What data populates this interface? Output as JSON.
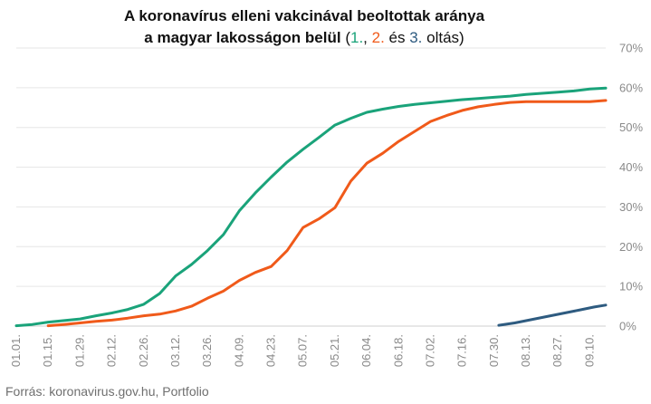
{
  "chart_data": {
    "type": "line",
    "title_line1": "A koronavírus elleni vakcinával beoltottak aránya",
    "title_line2_text": "a magyar lakosságon belül",
    "title_line2_open": " (",
    "legend_first": "1.",
    "legend_sep1": ", ",
    "legend_second": "2.",
    "legend_and": " és ",
    "legend_third": "3.",
    "legend_suffix": " oltás)",
    "xlabel": "",
    "ylabel": "",
    "x_ticks": [
      "01.01.",
      "01.15.",
      "01.29.",
      "02.12.",
      "02.26.",
      "03.12.",
      "03.26.",
      "04.09.",
      "04.23.",
      "05.07.",
      "05.21.",
      "06.04.",
      "06.18.",
      "07.02.",
      "07.16.",
      "07.30.",
      "08.13.",
      "08.27.",
      "09.10."
    ],
    "y_ticks": [
      "0%",
      "10%",
      "20%",
      "30%",
      "40%",
      "50%",
      "60%",
      "70%"
    ],
    "ylim": [
      0,
      70
    ],
    "x_start": "2021-01-01",
    "x_end": "2021-09-17",
    "grid": true,
    "legend": "in title",
    "series": [
      {
        "color": "#1aa37a",
        "x": [
          "2021-01-01",
          "2021-01-08",
          "2021-01-15",
          "2021-01-22",
          "2021-01-29",
          "2021-02-05",
          "2021-02-12",
          "2021-02-19",
          "2021-02-26",
          "2021-03-05",
          "2021-03-12",
          "2021-03-19",
          "2021-03-26",
          "2021-04-02",
          "2021-04-09",
          "2021-04-16",
          "2021-04-23",
          "2021-04-30",
          "2021-05-07",
          "2021-05-14",
          "2021-05-21",
          "2021-05-28",
          "2021-06-04",
          "2021-06-11",
          "2021-06-18",
          "2021-06-25",
          "2021-07-02",
          "2021-07-09",
          "2021-07-16",
          "2021-07-23",
          "2021-07-30",
          "2021-08-06",
          "2021-08-13",
          "2021-08-20",
          "2021-08-27",
          "2021-09-03",
          "2021-09-10",
          "2021-09-17"
        ],
        "values": [
          0.1,
          0.4,
          1.0,
          1.4,
          1.8,
          2.6,
          3.3,
          4.2,
          5.5,
          8.2,
          12.6,
          15.5,
          19.0,
          23.0,
          29.0,
          33.5,
          37.5,
          41.3,
          44.5,
          47.5,
          50.6,
          52.3,
          53.8,
          54.6,
          55.3,
          55.8,
          56.2,
          56.6,
          57.0,
          57.3,
          57.6,
          57.9,
          58.3,
          58.6,
          58.9,
          59.2,
          59.7,
          59.9
        ]
      },
      {
        "color": "#f05a1a",
        "x": [
          "2021-01-15",
          "2021-01-22",
          "2021-01-29",
          "2021-02-05",
          "2021-02-12",
          "2021-02-19",
          "2021-02-26",
          "2021-03-05",
          "2021-03-12",
          "2021-03-19",
          "2021-03-26",
          "2021-04-02",
          "2021-04-09",
          "2021-04-16",
          "2021-04-23",
          "2021-04-30",
          "2021-05-07",
          "2021-05-14",
          "2021-05-21",
          "2021-05-28",
          "2021-06-04",
          "2021-06-11",
          "2021-06-18",
          "2021-06-25",
          "2021-07-02",
          "2021-07-09",
          "2021-07-16",
          "2021-07-23",
          "2021-07-30",
          "2021-08-06",
          "2021-08-13",
          "2021-08-20",
          "2021-08-27",
          "2021-09-03",
          "2021-09-10",
          "2021-09-17"
        ],
        "values": [
          0.1,
          0.4,
          0.8,
          1.2,
          1.5,
          2.0,
          2.6,
          3.0,
          3.8,
          5.0,
          7.0,
          8.8,
          11.5,
          13.5,
          15.0,
          19.0,
          24.8,
          27.0,
          29.8,
          36.5,
          41.0,
          43.5,
          46.5,
          49.0,
          51.5,
          53.0,
          54.3,
          55.2,
          55.8,
          56.3,
          56.5,
          56.5,
          56.5,
          56.5,
          56.5,
          56.8
        ]
      },
      {
        "color": "#2e5b80",
        "x": [
          "2021-08-01",
          "2021-08-08",
          "2021-08-15",
          "2021-08-22",
          "2021-08-29",
          "2021-09-05",
          "2021-09-12",
          "2021-09-17"
        ],
        "values": [
          0.2,
          0.8,
          1.6,
          2.4,
          3.2,
          4.0,
          4.8,
          5.3
        ]
      }
    ]
  },
  "source": "Forrás: koronavirus.gov.hu, Portfolio"
}
